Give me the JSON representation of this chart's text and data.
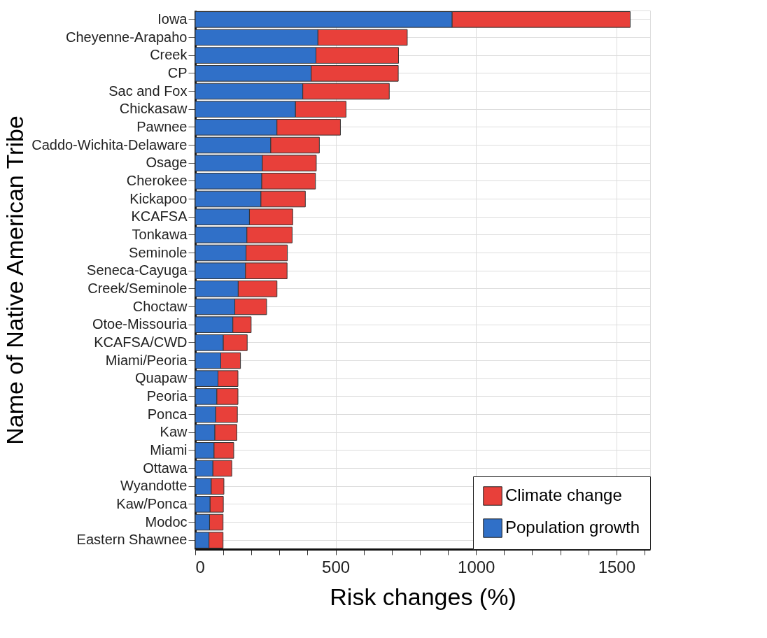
{
  "chart_data": {
    "type": "bar",
    "orientation": "horizontal",
    "stacked": true,
    "xlabel": "Risk changes (%)",
    "ylabel": "Name of Native American Tribe",
    "categories": [
      "Iowa",
      "Cheyenne-Arapaho",
      "Creek",
      "CP",
      "Sac and Fox",
      "Chickasaw",
      "Pawnee",
      "Caddo-Wichita-Delaware",
      "Osage",
      "Cherokee",
      "Kickapoo",
      "KCAFSA",
      "Tonkawa",
      "Seminole",
      "Seneca-Cayuga",
      "Creek/Seminole",
      "Choctaw",
      "Otoe-Missouria",
      "KCAFSA/CWD",
      "Miami/Peoria",
      "Quapaw",
      "Peoria",
      "Ponca",
      "Kaw",
      "Miami",
      "Ottawa",
      "Wyandotte",
      "Kaw/Ponca",
      "Modoc",
      "Eastern Shawnee"
    ],
    "series": [
      {
        "name": "Population growth",
        "color": "#3070c8",
        "values": [
          915,
          437,
          430,
          413,
          383,
          357,
          291,
          269,
          239,
          237,
          234,
          193,
          184,
          181,
          179,
          153,
          141,
          134,
          100,
          91,
          81,
          77,
          73,
          70,
          67,
          63,
          57,
          53,
          51,
          49
        ]
      },
      {
        "name": "Climate change",
        "color": "#e8403a",
        "values": [
          634,
          318,
          294,
          310,
          308,
          180,
          226,
          173,
          192,
          191,
          158,
          154,
          161,
          147,
          148,
          138,
          113,
          65,
          85,
          70,
          71,
          75,
          77,
          78,
          70,
          67,
          45,
          47,
          48,
          50
        ]
      }
    ],
    "xlim": [
      0,
      1620
    ],
    "xticks": [
      0,
      {
        "value": 100,
        "label": null
      },
      {
        "value": 200,
        "label": null
      },
      {
        "value": 300,
        "label": null
      },
      {
        "value": 400,
        "label": null
      },
      500,
      {
        "value": 600,
        "label": null
      },
      {
        "value": 700,
        "label": null
      },
      {
        "value": 800,
        "label": null
      },
      {
        "value": 900,
        "label": null
      },
      1000,
      {
        "value": 1100,
        "label": null
      },
      {
        "value": 1200,
        "label": null
      },
      {
        "value": 1300,
        "label": null
      },
      {
        "value": 1400,
        "label": null
      },
      1500,
      {
        "value": 1600,
        "label": null
      }
    ],
    "grid": true,
    "legend": "bottom right"
  }
}
